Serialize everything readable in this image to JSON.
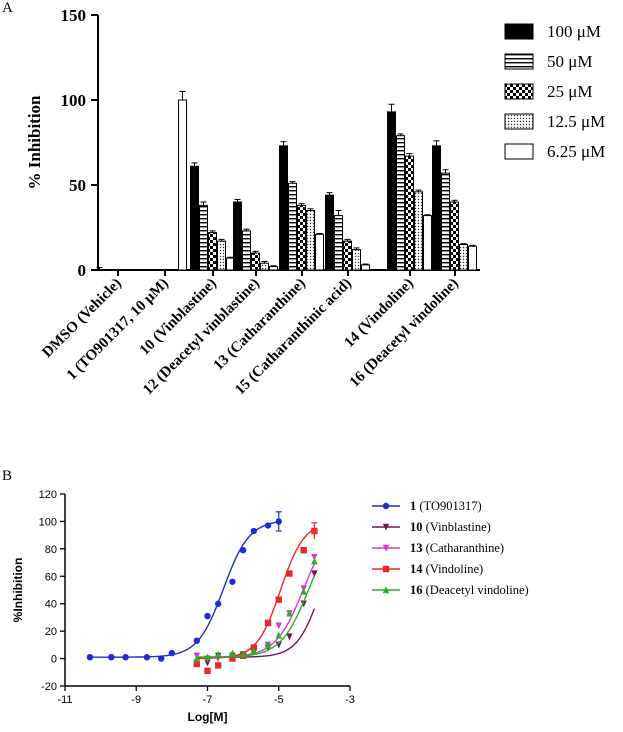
{
  "chart_data": [
    {
      "panel": "A",
      "type": "bar",
      "ylabel": "% Inhibition",
      "ylim": [
        0,
        150
      ],
      "yticks": [
        0,
        50,
        100,
        150
      ],
      "categories": [
        "DMSO (Vehicle)",
        "1 (TO901317, 10  μM)",
        "10 (Vinblastine)",
        "12 (Deacetyl vinblastine)",
        "13 (Catharanthine)",
        "15 (Catharanthinic acid)",
        "14 (Vindoline)",
        "16 (Deacetyl vindoline)"
      ],
      "series": [
        {
          "name": "100 μM",
          "pattern": "solid",
          "values": [
            0,
            null,
            61,
            40,
            73,
            44,
            93,
            73
          ],
          "errors": [
            1.5,
            null,
            2,
            1.5,
            2.5,
            1.5,
            4.5,
            3
          ]
        },
        {
          "name": "50 μM",
          "pattern": "hlines",
          "values": [
            null,
            null,
            38,
            23,
            51,
            32,
            79,
            57
          ],
          "errors": [
            null,
            null,
            2,
            1,
            1,
            3,
            1,
            2
          ]
        },
        {
          "name": "25 μM",
          "pattern": "checker",
          "values": [
            null,
            null,
            22,
            10,
            38,
            17,
            67,
            40
          ],
          "errors": [
            null,
            null,
            1,
            1,
            1,
            1,
            1.5,
            1
          ]
        },
        {
          "name": "12.5 μM",
          "pattern": "dots",
          "values": [
            null,
            null,
            17,
            4,
            35,
            12,
            46,
            15
          ],
          "errors": [
            null,
            null,
            1,
            1,
            1,
            1,
            1,
            0.5
          ]
        },
        {
          "name": "6.25 μM",
          "pattern": "open",
          "values": [
            null,
            100,
            7,
            2,
            21,
            3,
            32,
            14
          ],
          "errors": [
            null,
            5,
            0.5,
            0.5,
            0.5,
            0.5,
            0.5,
            0.5
          ]
        }
      ]
    },
    {
      "panel": "B",
      "type": "scatter",
      "xlabel": "Log[M]",
      "ylabel": "%Inhibition",
      "xlim": [
        -11,
        -3
      ],
      "ylim": [
        -20,
        120
      ],
      "xticks": [
        -11,
        -9,
        -7,
        -5,
        -3
      ],
      "yticks": [
        -20,
        0,
        20,
        40,
        60,
        80,
        100,
        120
      ],
      "series": [
        {
          "name_bold": "1",
          "name_rest": " (TO901317)",
          "color": "#1f2bd6",
          "marker": "circle",
          "x": [
            -10.3,
            -9.7,
            -9.3,
            -8.7,
            -8.3,
            -8.0,
            -7.3,
            -7.0,
            -6.7,
            -6.3,
            -6.0,
            -5.7,
            -5.3,
            -5.0
          ],
          "y": [
            1,
            1,
            1,
            1,
            0,
            4,
            13,
            31,
            40,
            56,
            79,
            93,
            97,
            100
          ],
          "fit": {
            "bottom": 1,
            "top": 101,
            "logec50": -6.55,
            "hill": 1.2,
            "from": -10.3,
            "to": -5.0
          }
        },
        {
          "name_bold": "10",
          "name_rest": " (Vinblastine)",
          "color": "#6a1a5a",
          "marker": "triangle-down",
          "x": [
            -7.3,
            -7.0,
            -6.7,
            -6.3,
            -6.0,
            -5.7,
            -5.3,
            -5.0,
            -4.7,
            -4.3,
            -4.0
          ],
          "y": [
            -3,
            -3,
            2,
            2,
            3,
            5,
            8,
            10,
            16,
            40,
            62
          ],
          "fit": {
            "bottom": 1,
            "top": 101,
            "logec50": -3.8,
            "hill": 1.3,
            "from": -7.3,
            "to": -4.0
          }
        },
        {
          "name_bold": "13",
          "name_rest": " (Catharanthine)",
          "color": "#d63ad6",
          "marker": "triangle-down",
          "x": [
            -7.3,
            -7.0,
            -6.7,
            -6.3,
            -6.0,
            -5.7,
            -5.3,
            -5.0,
            -4.7,
            -4.3,
            -4.0
          ],
          "y": [
            2,
            0,
            0,
            1,
            2,
            6,
            10,
            24,
            33,
            51,
            74
          ],
          "fit": {
            "bottom": 1,
            "top": 101,
            "logec50": -4.3,
            "hill": 1.1,
            "from": -7.3,
            "to": -4.0
          }
        },
        {
          "name_bold": "14",
          "name_rest": " (Vindoline)",
          "color": "#e82a2a",
          "marker": "square",
          "x": [
            -7.3,
            -7.0,
            -6.7,
            -6.3,
            -6.0,
            -5.7,
            -5.3,
            -5.0,
            -4.7,
            -4.3,
            -4.0
          ],
          "y": [
            -4,
            -9,
            -5,
            0,
            2,
            8,
            26,
            43,
            62,
            79,
            93
          ],
          "fit": {
            "bottom": 0,
            "top": 100,
            "logec50": -4.95,
            "hill": 1.3,
            "from": -7.3,
            "to": -4.0
          }
        },
        {
          "name_bold": "16",
          "name_rest": " (Deacetyl vindoline)",
          "color": "#22b422",
          "marker": "triangle-up",
          "x": [
            -7.3,
            -7.0,
            -6.7,
            -6.3,
            -6.0,
            -5.7,
            -5.3,
            -5.0,
            -4.7,
            -4.3,
            -4.0
          ],
          "y": [
            0,
            1,
            3,
            4,
            3,
            6,
            10,
            17,
            33,
            49,
            71
          ],
          "fit": {
            "bottom": 1,
            "top": 101,
            "logec50": -4.15,
            "hill": 1.1,
            "from": -7.3,
            "to": -4.0
          }
        }
      ]
    }
  ]
}
